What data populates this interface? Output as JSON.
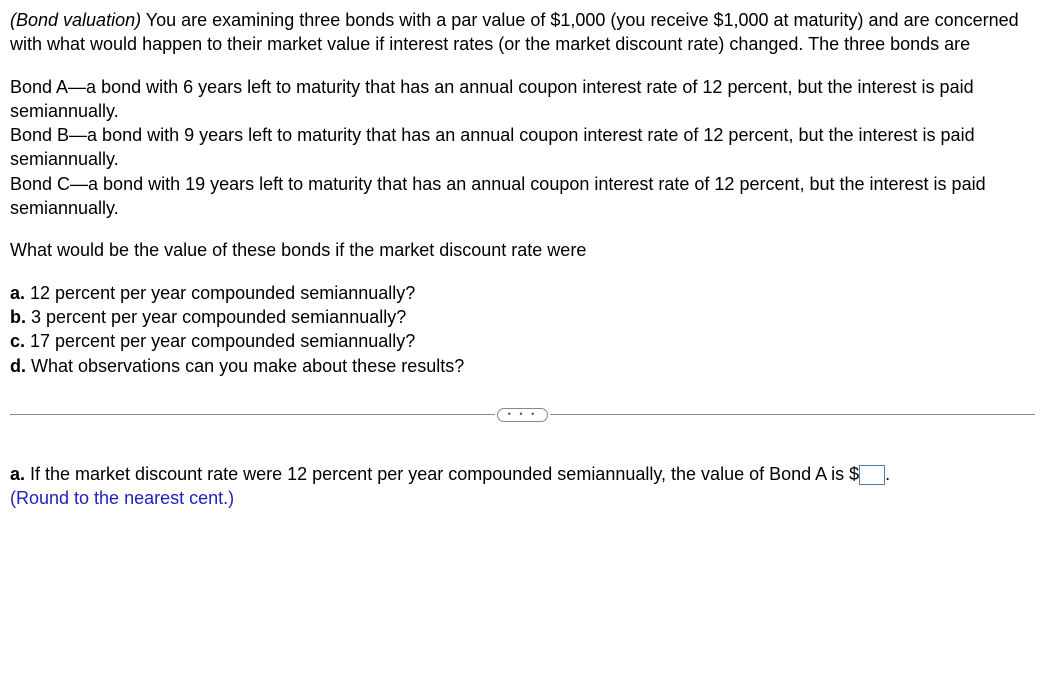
{
  "intro": {
    "title": "(Bond valuation)",
    "text1": " You are examining three bonds with a par value of $1,000 (you receive $1,000 at maturity) and are concerned with what would happen to their market value if interest rates (or the market discount rate) changed. The three bonds are"
  },
  "bonds": {
    "a": "Bond A—a bond with 6 years left to maturity that has an annual coupon interest rate of 12 percent, but the interest is paid semiannually.",
    "b": "Bond B—a bond with 9 years left to maturity that has an annual coupon interest rate of 12 percent, but the interest is paid semiannually.",
    "c": "Bond C—a bond with 19 years left to maturity that has an annual coupon interest rate of 12 percent, but the interest is paid semiannually."
  },
  "question_lead": "What would be the value of these bonds if the market discount rate were",
  "parts": {
    "a_label": "a.",
    "a_text": " 12 percent per year compounded semiannually?",
    "b_label": "b.",
    "b_text": " 3 percent per year compounded semiannually?",
    "c_label": "c.",
    "c_text": " 17 percent per year compounded semiannually?",
    "d_label": "d.",
    "d_text": " What observations can you make about these results?"
  },
  "divider_dots": "•  •  •",
  "answer": {
    "label": "a.",
    "text1": " If the market discount rate were 12 percent per year compounded semiannually, the value of Bond A is $",
    "period": ".",
    "instruction": "(Round to the nearest cent.)"
  }
}
